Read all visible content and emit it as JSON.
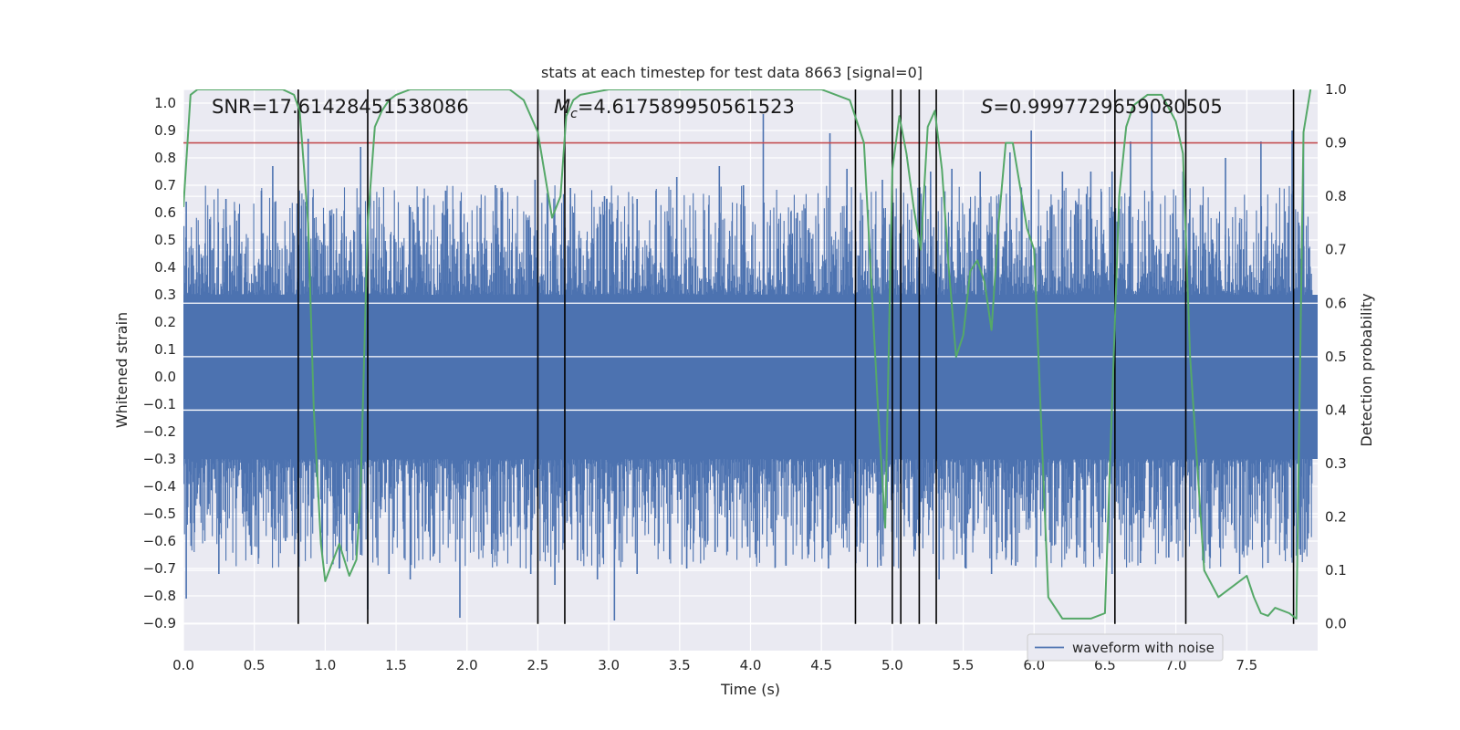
{
  "chart_data": {
    "type": "line",
    "title": "stats at each timestep for test data 8663 [signal=0]",
    "xlabel": "Time (s)",
    "ylabel": "Whitened strain",
    "y2label": "Detection probability",
    "xlim": [
      0.0,
      8.0
    ],
    "ylim": [
      -1.0,
      1.05
    ],
    "y2lim": [
      -0.05,
      1.0
    ],
    "xticks": [
      "0.0",
      "0.5",
      "1.0",
      "1.5",
      "2.0",
      "2.5",
      "3.0",
      "3.5",
      "4.0",
      "4.5",
      "5.0",
      "5.5",
      "6.0",
      "6.5",
      "7.0",
      "7.5"
    ],
    "yticks": [
      "1.0",
      "0.9",
      "0.8",
      "0.7",
      "0.6",
      "0.5",
      "0.4",
      "0.3",
      "0.2",
      "0.1",
      "0.0",
      "-0.1",
      "-0.2",
      "-0.3",
      "-0.4",
      "-0.5",
      "-0.6",
      "-0.7",
      "-0.8",
      "-0.9"
    ],
    "y2ticks": [
      "1.0",
      "0.9",
      "0.8",
      "0.7",
      "0.6",
      "0.5",
      "0.4",
      "0.3",
      "0.2",
      "0.1",
      "0.0"
    ],
    "grid": true,
    "annotations": {
      "snr": "SNR=17.61428451538086",
      "mc_symbol": "M",
      "mc_sub": "c",
      "mc_value": "=4.617589950561523",
      "s_symbol": "S",
      "s_value": "=0.9997729659080505"
    },
    "legend": {
      "label": "waveform with noise",
      "placement": "lower-right"
    },
    "waveform": {
      "name": "waveform with noise",
      "color": "#4c72b0",
      "band_upper": 0.3,
      "band_lower": -0.3,
      "peaks_upper": [
        [
          0.02,
          0.64
        ],
        [
          0.3,
          0.65
        ],
        [
          0.55,
          0.68
        ],
        [
          0.63,
          0.77
        ],
        [
          0.88,
          0.87
        ],
        [
          1.1,
          0.45
        ],
        [
          1.25,
          0.84
        ],
        [
          1.38,
          0.62
        ],
        [
          1.6,
          0.62
        ],
        [
          1.85,
          0.68
        ],
        [
          2.2,
          0.7
        ],
        [
          2.48,
          0.72
        ],
        [
          2.73,
          0.69
        ],
        [
          2.97,
          0.66
        ],
        [
          3.2,
          0.65
        ],
        [
          3.48,
          0.73
        ],
        [
          3.78,
          0.77
        ],
        [
          3.95,
          0.7
        ],
        [
          4.09,
          0.96
        ],
        [
          4.33,
          0.6
        ],
        [
          4.56,
          0.89
        ],
        [
          4.68,
          0.76
        ],
        [
          4.93,
          0.72
        ],
        [
          5.27,
          0.75
        ],
        [
          5.42,
          0.76
        ],
        [
          5.62,
          0.75
        ],
        [
          5.83,
          0.82
        ],
        [
          5.98,
          0.9
        ],
        [
          6.2,
          0.75
        ],
        [
          6.4,
          0.75
        ],
        [
          6.55,
          0.75
        ],
        [
          6.68,
          0.86
        ],
        [
          6.83,
          1.0
        ],
        [
          7.05,
          0.75
        ],
        [
          7.35,
          0.8
        ],
        [
          7.6,
          0.86
        ],
        [
          7.82,
          0.9
        ],
        [
          7.9,
          0.89
        ]
      ],
      "peaks_lower": [
        [
          0.02,
          -0.81
        ],
        [
          0.25,
          -0.72
        ],
        [
          0.48,
          -0.65
        ],
        [
          0.72,
          -0.6
        ],
        [
          0.98,
          -0.66
        ],
        [
          1.1,
          -0.7
        ],
        [
          1.25,
          -0.65
        ],
        [
          1.3,
          -0.85
        ],
        [
          1.45,
          -0.72
        ],
        [
          1.6,
          -0.74
        ],
        [
          1.95,
          -0.88
        ],
        [
          2.2,
          -0.58
        ],
        [
          2.45,
          -0.72
        ],
        [
          2.62,
          -0.76
        ],
        [
          2.78,
          -0.67
        ],
        [
          2.92,
          -0.74
        ],
        [
          3.04,
          -0.89
        ],
        [
          3.2,
          -0.72
        ],
        [
          3.55,
          -0.7
        ],
        [
          3.75,
          -0.64
        ],
        [
          3.98,
          -0.62
        ],
        [
          4.25,
          -0.69
        ],
        [
          4.55,
          -0.7
        ],
        [
          4.75,
          -0.62
        ],
        [
          4.92,
          -0.69
        ],
        [
          5.16,
          -0.63
        ],
        [
          5.33,
          -0.74
        ],
        [
          5.52,
          -0.7
        ],
        [
          5.7,
          -0.72
        ],
        [
          5.87,
          -0.69
        ],
        [
          6.08,
          -0.6
        ],
        [
          6.3,
          -0.66
        ],
        [
          6.55,
          -0.72
        ],
        [
          6.75,
          -0.68
        ],
        [
          6.95,
          -0.66
        ],
        [
          7.2,
          -0.68
        ],
        [
          7.45,
          -0.72
        ],
        [
          7.65,
          -0.68
        ],
        [
          7.88,
          -0.65
        ]
      ]
    },
    "detection_probability": {
      "color": "#55a868",
      "x": [
        0.0,
        0.05,
        0.1,
        0.3,
        0.5,
        0.7,
        0.78,
        0.82,
        0.88,
        0.92,
        0.97,
        1.0,
        1.1,
        1.17,
        1.22,
        1.25,
        1.3,
        1.35,
        1.4,
        1.45,
        1.5,
        1.6,
        1.7,
        1.9,
        2.0,
        2.3,
        2.4,
        2.5,
        2.6,
        2.66,
        2.7,
        2.75,
        2.8,
        3.0,
        3.3,
        3.5,
        3.8,
        4.0,
        4.3,
        4.5,
        4.7,
        4.8,
        4.9,
        4.95,
        5.0,
        5.05,
        5.1,
        5.15,
        5.2,
        5.25,
        5.3,
        5.35,
        5.4,
        5.45,
        5.5,
        5.55,
        5.6,
        5.65,
        5.7,
        5.75,
        5.8,
        5.85,
        5.9,
        5.95,
        6.0,
        6.1,
        6.2,
        6.3,
        6.4,
        6.5,
        6.6,
        6.65,
        6.7,
        6.8,
        6.9,
        7.0,
        7.05,
        7.1,
        7.2,
        7.3,
        7.4,
        7.5,
        7.55,
        7.6,
        7.65,
        7.7,
        7.8,
        7.85,
        7.9,
        7.95
      ],
      "y": [
        0.78,
        0.99,
        1.0,
        1.0,
        1.0,
        1.0,
        0.99,
        0.96,
        0.75,
        0.4,
        0.15,
        0.08,
        0.15,
        0.09,
        0.12,
        0.25,
        0.75,
        0.93,
        0.96,
        0.98,
        0.99,
        1.0,
        1.0,
        1.0,
        1.0,
        1.0,
        0.98,
        0.92,
        0.76,
        0.8,
        0.95,
        0.98,
        0.99,
        1.0,
        1.0,
        1.0,
        1.0,
        1.0,
        1.0,
        1.0,
        0.98,
        0.9,
        0.4,
        0.18,
        0.85,
        0.95,
        0.88,
        0.78,
        0.7,
        0.93,
        0.96,
        0.85,
        0.66,
        0.5,
        0.54,
        0.66,
        0.68,
        0.64,
        0.55,
        0.75,
        0.9,
        0.9,
        0.82,
        0.74,
        0.7,
        0.05,
        0.01,
        0.01,
        0.01,
        0.02,
        0.8,
        0.93,
        0.97,
        0.99,
        0.99,
        0.94,
        0.88,
        0.5,
        0.1,
        0.05,
        0.07,
        0.09,
        0.05,
        0.02,
        0.015,
        0.03,
        0.02,
        0.01,
        0.92,
        1.0
      ]
    },
    "threshold": {
      "value": 0.9,
      "axis": "right",
      "color": "#c44e52"
    },
    "vertical_markers": {
      "color": "#000000",
      "x": [
        0.81,
        1.3,
        2.5,
        2.69,
        4.74,
        5.0,
        5.06,
        5.19,
        5.31,
        6.57,
        7.07,
        7.83
      ]
    }
  }
}
